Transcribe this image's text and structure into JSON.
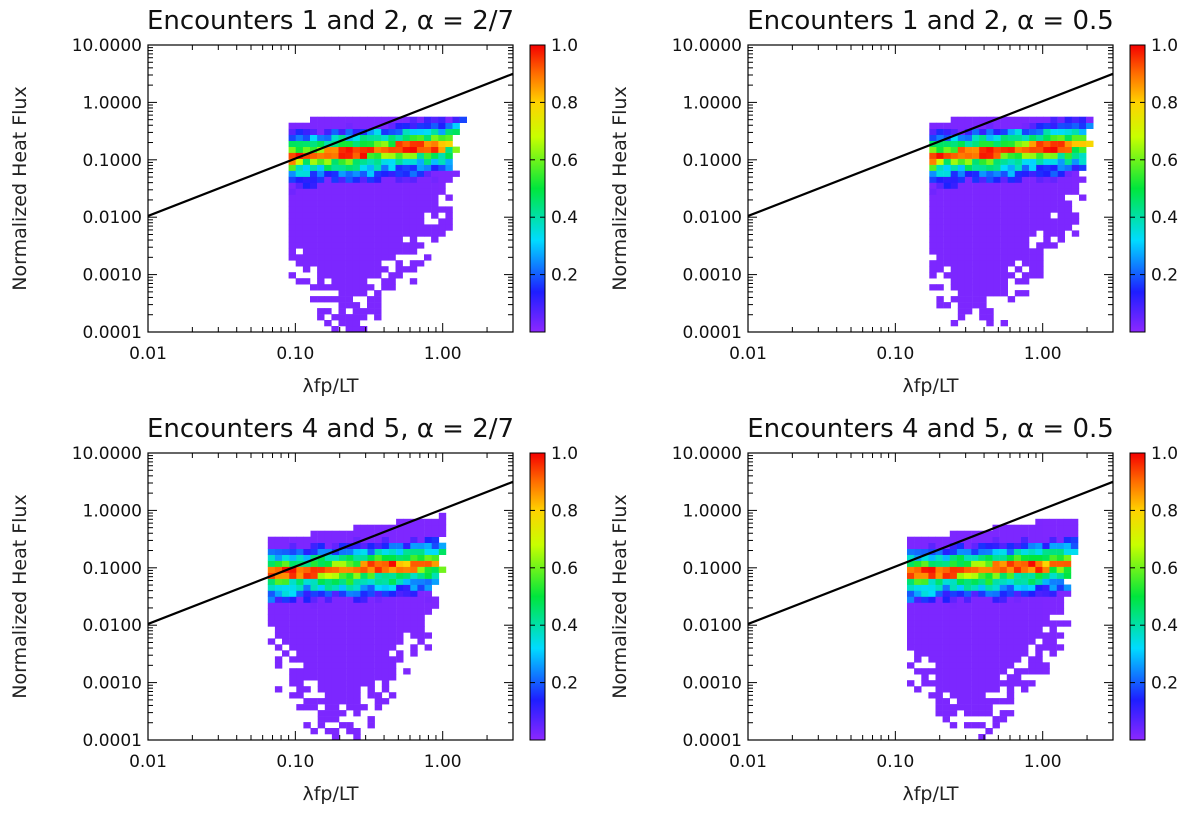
{
  "chart_data": [
    {
      "type": "heatmap",
      "title": "Encounters 1 and 2, α = 2/7",
      "xlabel": "λfp/LT",
      "ylabel": "Normalized Heat Flux",
      "x_scale": "log",
      "y_scale": "log",
      "xlim": [
        0.01,
        3.0
      ],
      "ylim": [
        0.0001,
        10.0
      ],
      "xticks": [
        "0.01",
        "0.10",
        "1.00"
      ],
      "yticks": [
        "0.0001",
        "0.0010",
        "0.0100",
        "0.1000",
        "1.0000",
        "10.0000"
      ],
      "colorbar": {
        "range": [
          0.0,
          1.0
        ],
        "ticks": [
          "0.2",
          "0.4",
          "0.6",
          "0.8",
          "1.0"
        ],
        "colormap": "rainbow"
      },
      "density": {
        "x_range": [
          0.09,
          1.6
        ],
        "x_peak": 0.55,
        "ridge_y_low": 0.1,
        "ridge_y_high": 0.18,
        "y_top": 0.55,
        "y_bottom": 0.0001,
        "tail_x": 0.22
      },
      "line": {
        "x": [
          0.01,
          3.0
        ],
        "y": [
          0.0105,
          3.15
        ]
      }
    },
    {
      "type": "heatmap",
      "title": "Encounters 1 and 2, α = 0.5",
      "xlabel": "λfp/LT",
      "ylabel": "Normalized Heat Flux",
      "x_scale": "log",
      "y_scale": "log",
      "xlim": [
        0.01,
        3.0
      ],
      "ylim": [
        0.0001,
        10.0
      ],
      "xticks": [
        "0.01",
        "0.10",
        "1.00"
      ],
      "yticks": [
        "0.0001",
        "0.0010",
        "0.0100",
        "0.1000",
        "1.0000",
        "10.0000"
      ],
      "colorbar": {
        "range": [
          0.0,
          1.0
        ],
        "ticks": [
          "0.2",
          "0.4",
          "0.6",
          "0.8",
          "1.0"
        ],
        "colormap": "rainbow"
      },
      "density": {
        "x_range": [
          0.17,
          2.5
        ],
        "x_peak": 0.9,
        "ridge_y_low": 0.1,
        "ridge_y_high": 0.18,
        "y_top": 0.5,
        "y_bottom": 0.0001,
        "tail_x": 0.35
      },
      "line": {
        "x": [
          0.01,
          3.0
        ],
        "y": [
          0.0105,
          3.15
        ]
      }
    },
    {
      "type": "heatmap",
      "title": "Encounters 4 and 5, α = 2/7",
      "xlabel": "λfp/LT",
      "ylabel": "Normalized Heat Flux",
      "x_scale": "log",
      "y_scale": "log",
      "xlim": [
        0.01,
        3.0
      ],
      "ylim": [
        0.0001,
        10.0
      ],
      "xticks": [
        "0.01",
        "0.10",
        "1.00"
      ],
      "yticks": [
        "0.0001",
        "0.0010",
        "0.0100",
        "0.1000",
        "1.0000",
        "10.0000"
      ],
      "colorbar": {
        "range": [
          0.0,
          1.0
        ],
        "ticks": [
          "0.2",
          "0.4",
          "0.6",
          "0.8",
          "1.0"
        ],
        "colormap": "rainbow"
      },
      "density": {
        "x_range": [
          0.065,
          1.2
        ],
        "x_peak": 0.3,
        "ridge_y_low": 0.07,
        "ridge_y_high": 0.11,
        "y_top": 1.2,
        "y_bottom": 0.0001,
        "tail_x": 0.2
      },
      "line": {
        "x": [
          0.01,
          3.0
        ],
        "y": [
          0.0105,
          3.15
        ]
      }
    },
    {
      "type": "heatmap",
      "title": "Encounters 4 and 5, α = 0.5",
      "xlabel": "λfp/LT",
      "ylabel": "Normalized Heat Flux",
      "x_scale": "log",
      "y_scale": "log",
      "xlim": [
        0.01,
        3.0
      ],
      "ylim": [
        0.0001,
        10.0
      ],
      "xticks": [
        "0.01",
        "0.10",
        "1.00"
      ],
      "yticks": [
        "0.0001",
        "0.0010",
        "0.0100",
        "0.1000",
        "1.0000",
        "10.0000"
      ],
      "colorbar": {
        "range": [
          0.0,
          1.0
        ],
        "ticks": [
          "0.2",
          "0.4",
          "0.6",
          "0.8",
          "1.0"
        ],
        "colormap": "rainbow"
      },
      "density": {
        "x_range": [
          0.12,
          2.0
        ],
        "x_peak": 0.6,
        "ridge_y_low": 0.07,
        "ridge_y_high": 0.11,
        "y_top": 1.2,
        "y_bottom": 0.0001,
        "tail_x": 0.32
      },
      "line": {
        "x": [
          0.01,
          3.0
        ],
        "y": [
          0.0105,
          3.15
        ]
      }
    }
  ]
}
